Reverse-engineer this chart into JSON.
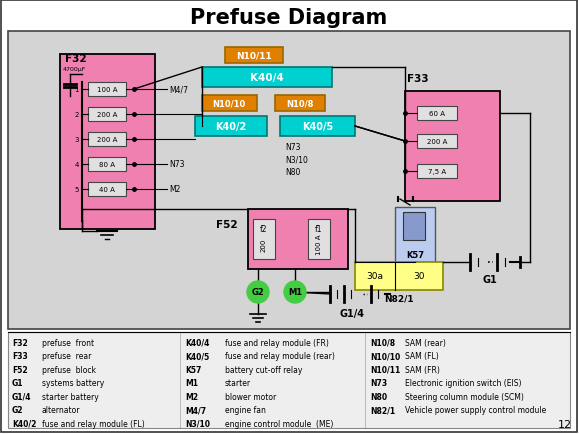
{
  "title": "Prefuse Diagram",
  "page_num": "12",
  "diagram_bg": "#d4d4d4",
  "pink": "#f080b0",
  "cyan": "#00d0d0",
  "orange": "#e08000",
  "yellow": "#ffff88",
  "green": "#44cc44",
  "legend": [
    [
      "F32",
      "prefuse  front",
      "K40/4",
      "fuse and relay module (FR)",
      "N10/8",
      "SAM (rear)"
    ],
    [
      "F33",
      "prefuse  rear",
      "K40/5",
      "fuse and relay module (rear)",
      "N10/10",
      "SAM (FL)"
    ],
    [
      "F52",
      "prefuse  block",
      "K57",
      "battery cut-off relay",
      "N10/11",
      "SAM (FR)"
    ],
    [
      "G1",
      "systems battery",
      "M1",
      "starter",
      "N73",
      "Electronic ignition switch (EIS)"
    ],
    [
      "G1/4",
      "starter battery",
      "M2",
      "blower motor",
      "N80",
      "Steering column module (SCM)"
    ],
    [
      "G2",
      "alternator",
      "M4/7",
      "engine fan",
      "N82/1",
      "Vehicle power supply control module"
    ],
    [
      "K40/2",
      "fuse and relay module (FL)",
      "N3/10",
      "engine control module  (ME)",
      "",
      ""
    ]
  ]
}
